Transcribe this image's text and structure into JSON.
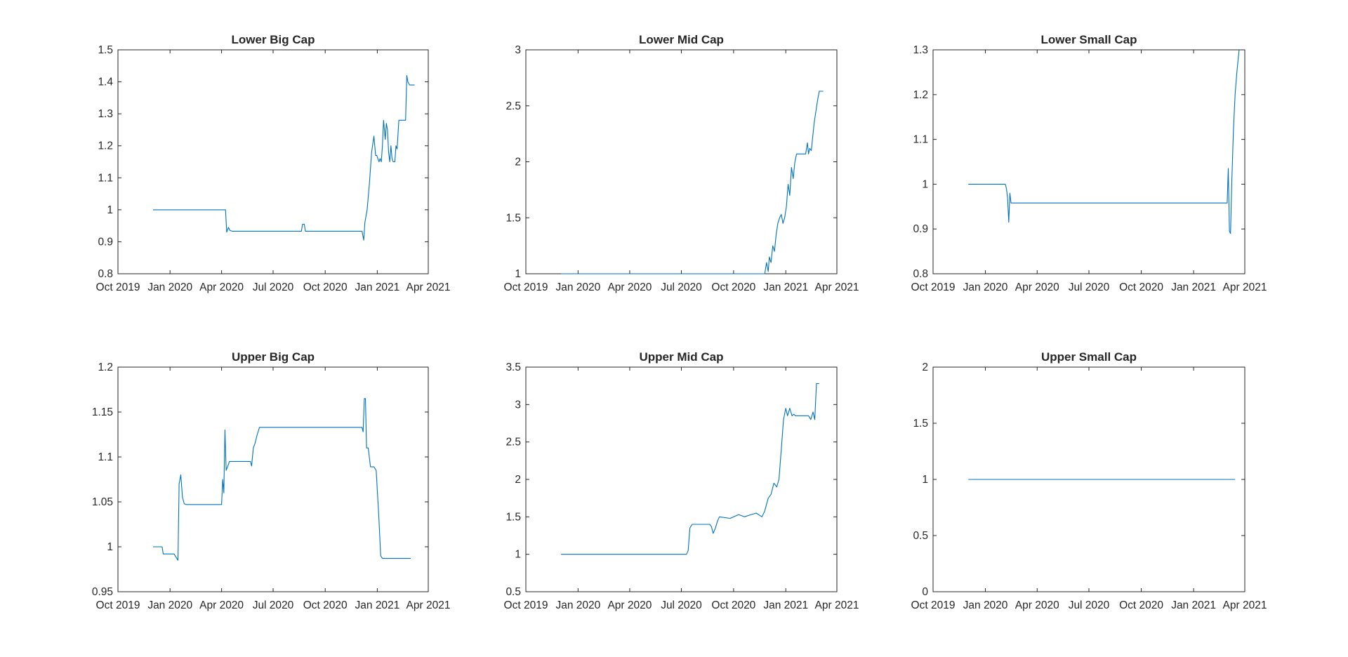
{
  "figure": {
    "background": "#ffffff",
    "axis_color": "#262626"
  },
  "chart_data": [
    {
      "type": "line",
      "title": "Lower Big Cap",
      "xlabel": "",
      "ylabel": "",
      "x_ticks": [
        "2019-10-01",
        "2020-01-01",
        "2020-04-01",
        "2020-07-01",
        "2020-10-01",
        "2021-01-01",
        "2021-04-01"
      ],
      "x_tick_labels": [
        "Oct 2019",
        "Jan 2020",
        "Apr 2020",
        "Jul 2020",
        "Oct 2020",
        "Jan 2021",
        "Apr 2021"
      ],
      "xlim": [
        "2019-10-01",
        "2021-04-01"
      ],
      "ylim": [
        0.8,
        1.5
      ],
      "y_ticks": [
        0.8,
        0.9,
        1,
        1.1,
        1.2,
        1.3,
        1.4,
        1.5
      ],
      "y_tick_labels": [
        "0.8",
        "0.9",
        "1",
        "1.1",
        "1.2",
        "1.3",
        "1.4",
        "1.5"
      ],
      "grid": false,
      "series": [
        {
          "color": "#0072bd",
          "x": [
            "2019-12-02",
            "2020-04-08",
            "2020-04-10",
            "2020-04-13",
            "2020-04-16",
            "2020-04-20",
            "2020-08-20",
            "2020-08-22",
            "2020-08-25",
            "2020-08-27",
            "2020-12-05",
            "2020-12-08",
            "2020-12-10",
            "2020-12-14",
            "2020-12-18",
            "2020-12-22",
            "2020-12-26",
            "2020-12-29",
            "2020-12-31",
            "2021-01-04",
            "2021-01-06",
            "2021-01-08",
            "2021-01-10",
            "2021-01-12",
            "2021-01-15",
            "2021-01-17",
            "2021-01-19",
            "2021-01-21",
            "2021-01-23",
            "2021-01-25",
            "2021-01-27",
            "2021-01-29",
            "2021-02-01",
            "2021-02-03",
            "2021-02-05",
            "2021-02-08",
            "2021-02-10",
            "2021-02-12",
            "2021-02-15",
            "2021-02-17",
            "2021-02-20",
            "2021-02-22",
            "2021-02-24",
            "2021-02-27",
            "2021-03-01",
            "2021-03-03",
            "2021-03-05",
            "2021-03-08"
          ],
          "y": [
            1.0,
            1.0,
            0.93,
            0.945,
            0.935,
            0.933,
            0.933,
            0.955,
            0.955,
            0.933,
            0.933,
            0.905,
            0.96,
            1.0,
            1.08,
            1.18,
            1.23,
            1.17,
            1.17,
            1.15,
            1.16,
            1.15,
            1.2,
            1.28,
            1.22,
            1.27,
            1.25,
            1.18,
            1.15,
            1.2,
            1.16,
            1.15,
            1.15,
            1.2,
            1.19,
            1.28,
            1.28,
            1.28,
            1.28,
            1.28,
            1.28,
            1.42,
            1.4,
            1.39,
            1.39,
            1.39,
            1.39,
            1.39
          ]
        }
      ]
    },
    {
      "type": "line",
      "title": "Lower Mid Cap",
      "xlabel": "",
      "ylabel": "",
      "x_ticks": [
        "2019-10-01",
        "2020-01-01",
        "2020-04-01",
        "2020-07-01",
        "2020-10-01",
        "2021-01-01",
        "2021-04-01"
      ],
      "x_tick_labels": [
        "Oct 2019",
        "Jan 2020",
        "Apr 2020",
        "Jul 2020",
        "Oct 2020",
        "Jan 2021",
        "Apr 2021"
      ],
      "xlim": [
        "2019-10-01",
        "2021-04-01"
      ],
      "ylim": [
        1,
        3
      ],
      "y_ticks": [
        1,
        1.5,
        2,
        2.5,
        3
      ],
      "y_tick_labels": [
        "1",
        "1.5",
        "2",
        "2.5",
        "3"
      ],
      "grid": false,
      "series": [
        {
          "color": "#0072bd",
          "x": [
            "2019-12-02",
            "2020-11-25",
            "2020-11-28",
            "2020-12-01",
            "2020-12-03",
            "2020-12-06",
            "2020-12-09",
            "2020-12-12",
            "2020-12-15",
            "2020-12-18",
            "2020-12-21",
            "2020-12-24",
            "2020-12-27",
            "2020-12-30",
            "2021-01-02",
            "2021-01-05",
            "2021-01-08",
            "2021-01-11",
            "2021-01-14",
            "2021-01-17",
            "2021-01-20",
            "2021-01-23",
            "2021-01-26",
            "2021-02-05",
            "2021-02-08",
            "2021-02-10",
            "2021-02-12",
            "2021-02-15",
            "2021-02-17",
            "2021-02-20",
            "2021-02-23",
            "2021-02-26",
            "2021-03-01",
            "2021-03-03",
            "2021-03-08"
          ],
          "y": [
            1.0,
            1.0,
            1.1,
            1.02,
            1.15,
            1.1,
            1.25,
            1.2,
            1.35,
            1.45,
            1.5,
            1.53,
            1.45,
            1.5,
            1.6,
            1.8,
            1.7,
            1.95,
            1.85,
            2.0,
            2.07,
            2.07,
            2.07,
            2.07,
            2.17,
            2.07,
            2.12,
            2.1,
            2.2,
            2.35,
            2.45,
            2.55,
            2.63,
            2.63,
            2.63
          ]
        }
      ]
    },
    {
      "type": "line",
      "title": "Lower Small Cap",
      "xlabel": "",
      "ylabel": "",
      "x_ticks": [
        "2019-10-01",
        "2020-01-01",
        "2020-04-01",
        "2020-07-01",
        "2020-10-01",
        "2021-01-01",
        "2021-04-01"
      ],
      "x_tick_labels": [
        "Oct 2019",
        "Jan 2020",
        "Apr 2020",
        "Jul 2020",
        "Oct 2020",
        "Jan 2021",
        "Apr 2021"
      ],
      "xlim": [
        "2019-10-01",
        "2021-04-01"
      ],
      "ylim": [
        0.8,
        1.3
      ],
      "y_ticks": [
        0.8,
        0.9,
        1,
        1.1,
        1.2,
        1.3
      ],
      "y_tick_labels": [
        "0.8",
        "0.9",
        "1",
        "1.1",
        "1.2",
        "1.3"
      ],
      "grid": false,
      "series": [
        {
          "color": "#0072bd",
          "x": [
            "2019-12-02",
            "2020-02-05",
            "2020-02-07",
            "2020-02-09",
            "2020-02-11",
            "2020-02-13",
            "2020-02-15",
            "2020-02-17",
            "2021-02-25",
            "2021-03-01",
            "2021-03-03",
            "2021-03-05",
            "2021-03-07",
            "2021-03-09",
            "2021-03-12",
            "2021-03-15",
            "2021-03-18",
            "2021-03-22"
          ],
          "y": [
            1.0,
            1.0,
            0.99,
            0.97,
            0.915,
            0.98,
            0.958,
            0.958,
            0.958,
            0.958,
            1.035,
            0.895,
            0.89,
            1.0,
            1.12,
            1.2,
            1.25,
            1.3
          ]
        }
      ]
    },
    {
      "type": "line",
      "title": "Upper Big Cap",
      "xlabel": "",
      "ylabel": "",
      "x_ticks": [
        "2019-10-01",
        "2020-01-01",
        "2020-04-01",
        "2020-07-01",
        "2020-10-01",
        "2021-01-01",
        "2021-04-01"
      ],
      "x_tick_labels": [
        "Oct 2019",
        "Jan 2020",
        "Apr 2020",
        "Jul 2020",
        "Oct 2020",
        "Jan 2021",
        "Apr 2021"
      ],
      "xlim": [
        "2019-10-01",
        "2021-04-01"
      ],
      "ylim": [
        0.95,
        1.2
      ],
      "y_ticks": [
        0.95,
        1,
        1.05,
        1.1,
        1.15,
        1.2
      ],
      "y_tick_labels": [
        "0.95",
        "1",
        "1.05",
        "1.1",
        "1.15",
        "1.2"
      ],
      "grid": false,
      "series": [
        {
          "color": "#0072bd",
          "x": [
            "2019-12-02",
            "2019-12-18",
            "2019-12-20",
            "2020-01-08",
            "2020-01-15",
            "2020-01-17",
            "2020-01-20",
            "2020-01-23",
            "2020-01-26",
            "2020-01-29",
            "2020-04-01",
            "2020-04-03",
            "2020-04-05",
            "2020-04-07",
            "2020-04-09",
            "2020-04-12",
            "2020-04-15",
            "2020-04-18",
            "2020-05-22",
            "2020-05-24",
            "2020-05-27",
            "2020-05-30",
            "2020-06-03",
            "2020-06-07",
            "2020-06-11",
            "2020-06-14",
            "2020-12-05",
            "2020-12-07",
            "2020-12-09",
            "2020-12-11",
            "2020-12-13",
            "2020-12-16",
            "2020-12-20",
            "2020-12-26",
            "2020-12-30",
            "2021-01-04",
            "2021-01-07",
            "2021-01-10",
            "2021-01-13",
            "2021-03-01"
          ],
          "y": [
            1.0,
            1.0,
            0.992,
            0.992,
            0.985,
            1.07,
            1.08,
            1.055,
            1.048,
            1.047,
            1.047,
            1.075,
            1.06,
            1.13,
            1.085,
            1.09,
            1.095,
            1.095,
            1.095,
            1.09,
            1.11,
            1.115,
            1.125,
            1.133,
            1.133,
            1.133,
            1.133,
            1.128,
            1.165,
            1.165,
            1.11,
            1.11,
            1.089,
            1.089,
            1.085,
            1.03,
            0.99,
            0.987,
            0.987,
            0.987
          ]
        }
      ]
    },
    {
      "type": "line",
      "title": "Upper Mid Cap",
      "xlabel": "",
      "ylabel": "",
      "x_ticks": [
        "2019-10-01",
        "2020-01-01",
        "2020-04-01",
        "2020-07-01",
        "2020-10-01",
        "2021-01-01",
        "2021-04-01"
      ],
      "x_tick_labels": [
        "Oct 2019",
        "Jan 2020",
        "Apr 2020",
        "Jul 2020",
        "Oct 2020",
        "Jan 2021",
        "Apr 2021"
      ],
      "xlim": [
        "2019-10-01",
        "2021-04-01"
      ],
      "ylim": [
        0.5,
        3.5
      ],
      "y_ticks": [
        0.5,
        1,
        1.5,
        2,
        2.5,
        3,
        3.5
      ],
      "y_tick_labels": [
        "0.5",
        "1",
        "1.5",
        "2",
        "2.5",
        "3",
        "3.5"
      ],
      "grid": false,
      "series": [
        {
          "color": "#0072bd",
          "x": [
            "2019-12-02",
            "2020-07-05",
            "2020-07-10",
            "2020-07-13",
            "2020-07-16",
            "2020-07-20",
            "2020-08-20",
            "2020-08-23",
            "2020-08-26",
            "2020-08-30",
            "2020-09-03",
            "2020-09-06",
            "2020-09-25",
            "2020-10-10",
            "2020-10-20",
            "2020-11-01",
            "2020-11-10",
            "2020-11-20",
            "2020-11-25",
            "2020-12-01",
            "2020-12-06",
            "2020-12-11",
            "2020-12-16",
            "2020-12-20",
            "2020-12-24",
            "2020-12-28",
            "2021-01-01",
            "2021-01-04",
            "2021-01-08",
            "2021-01-12",
            "2021-01-15",
            "2021-01-18",
            "2021-01-22",
            "2021-02-10",
            "2021-02-14",
            "2021-02-18",
            "2021-02-21",
            "2021-02-24",
            "2021-03-01"
          ],
          "y": [
            1.0,
            1.0,
            1.0,
            1.05,
            1.35,
            1.4,
            1.4,
            1.37,
            1.28,
            1.35,
            1.45,
            1.5,
            1.48,
            1.53,
            1.5,
            1.53,
            1.55,
            1.5,
            1.58,
            1.75,
            1.8,
            1.95,
            1.9,
            2.0,
            2.4,
            2.8,
            2.95,
            2.85,
            2.95,
            2.85,
            2.87,
            2.85,
            2.85,
            2.85,
            2.8,
            2.9,
            2.8,
            3.28,
            3.28
          ]
        }
      ]
    },
    {
      "type": "line",
      "title": "Upper Small Cap",
      "xlabel": "",
      "ylabel": "",
      "x_ticks": [
        "2019-10-01",
        "2020-01-01",
        "2020-04-01",
        "2020-07-01",
        "2020-10-01",
        "2021-01-01",
        "2021-04-01"
      ],
      "x_tick_labels": [
        "Oct 2019",
        "Jan 2020",
        "Apr 2020",
        "Jul 2020",
        "Oct 2020",
        "Jan 2021",
        "Apr 2021"
      ],
      "xlim": [
        "2019-10-01",
        "2021-04-01"
      ],
      "ylim": [
        0,
        2
      ],
      "y_ticks": [
        0,
        0.5,
        1,
        1.5,
        2
      ],
      "y_tick_labels": [
        "0",
        "0.5",
        "1",
        "1.5",
        "2"
      ],
      "grid": false,
      "series": [
        {
          "color": "#0072bd",
          "x": [
            "2019-12-02",
            "2021-03-15"
          ],
          "y": [
            1.0,
            1.0
          ]
        }
      ]
    }
  ]
}
